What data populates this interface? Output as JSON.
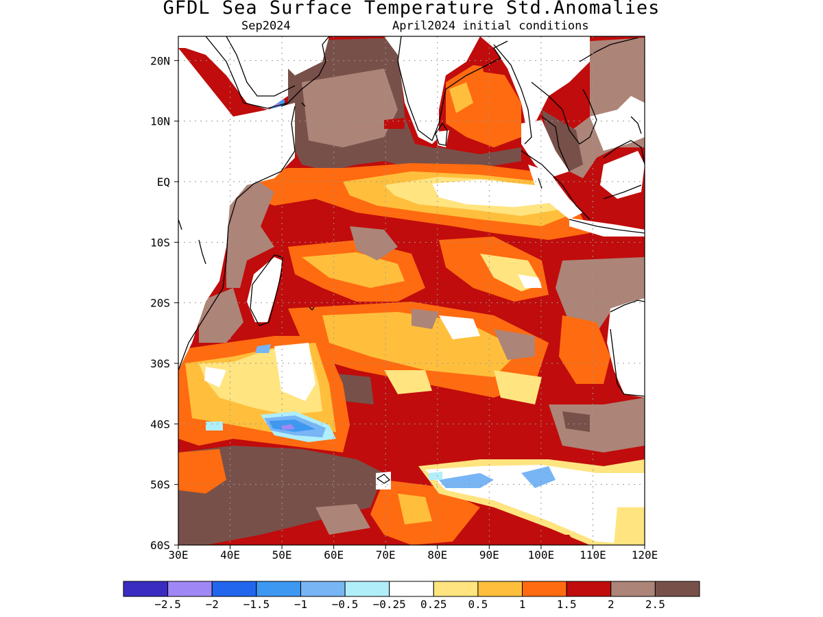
{
  "header": {
    "title": "GFDL Sea Surface Temperature Std.Anomalies",
    "valid_month": "Sep2024",
    "init_label": "April2024 initial conditions"
  },
  "map": {
    "lon_range": [
      30,
      120
    ],
    "lat_range": [
      -60,
      24
    ],
    "lon_ticks": [
      "30E",
      "40E",
      "50E",
      "60E",
      "70E",
      "80E",
      "90E",
      "100E",
      "110E",
      "120E"
    ],
    "lat_ticks": [
      "20N",
      "10N",
      "EQ",
      "10S",
      "20S",
      "30S",
      "40S",
      "50S",
      "60S"
    ],
    "grid": "dotted"
  },
  "colorbar": {
    "colors": [
      "#3a2cc0",
      "#9f88f5",
      "#2266ee",
      "#3d98f2",
      "#78b5f5",
      "#b0eefa",
      "#ffffff",
      "#ffe480",
      "#ffbf3c",
      "#ff6b10",
      "#c00c0c",
      "#ad8478",
      "#78504a"
    ],
    "labels": [
      "−2.5",
      "−2",
      "−1.5",
      "−1",
      "−0.5",
      "−0.25",
      "0.25",
      "0.5",
      "1",
      "1.5",
      "2",
      "2.5"
    ]
  }
}
